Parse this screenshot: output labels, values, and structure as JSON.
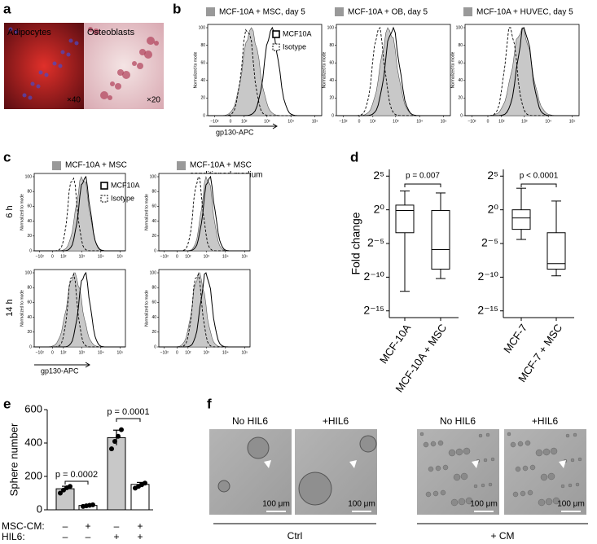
{
  "panels": {
    "a": {
      "letter": "a",
      "images": [
        {
          "label": "Adipocytes",
          "magnification": "×40"
        },
        {
          "label": "Osteoblasts",
          "magnification": "×20"
        }
      ]
    },
    "b": {
      "letter": "b",
      "plots": [
        {
          "title": "MCF-10A + MSC, day 5"
        },
        {
          "title": "MCF-10A + OB, day 5"
        },
        {
          "title": "MCF-10A + HUVEC, day 5"
        }
      ],
      "legend": [
        "MCF10A",
        "Isotype"
      ],
      "x_label": "gp130-APC",
      "y_label": "Normalized to mode"
    },
    "c": {
      "letter": "c",
      "columns": [
        {
          "title_lines": [
            "MCF-10A + MSC"
          ]
        },
        {
          "title_lines": [
            "MCF-10A + MSC",
            "conditioned medium"
          ]
        }
      ],
      "rows": [
        "6 h",
        "14 h"
      ],
      "legend": [
        "MCF10A",
        "Isotype"
      ],
      "x_label": "gp130-APC",
      "y_label": "Normalized to mode"
    },
    "flow_axes": {
      "xticks": [
        "−10²",
        "0",
        "10²",
        "10³",
        "10⁴",
        "10⁵"
      ],
      "yticks": [
        0,
        20,
        40,
        60,
        80,
        100
      ]
    },
    "d": {
      "letter": "d"
    },
    "e": {
      "letter": "e"
    },
    "f": {
      "letter": "f",
      "columns": [
        "No HIL6",
        "+HIL6",
        "No HIL6",
        "+HIL6"
      ],
      "groups": [
        "Ctrl",
        "+ CM"
      ],
      "scale_bar": "100 μm"
    }
  },
  "chart_data": [
    {
      "type": "box",
      "y_label": "Fold change",
      "log_base": 2,
      "ylim": [
        1.52587890625e-05,
        64
      ],
      "yticks": [
        {
          "value": 32,
          "label": "2⁵"
        },
        {
          "value": 1,
          "label": "2⁰"
        },
        {
          "value": 0.03125,
          "label": "2⁻⁵"
        },
        {
          "value": 0.0009765625,
          "label": "2⁻¹⁰"
        },
        {
          "value": 3.0517578125e-05,
          "label": "2⁻¹⁵"
        }
      ],
      "categories": [
        "MCF-10A",
        "MCF-10A + MSC"
      ],
      "boxes": [
        {
          "min": 0.000228,
          "q1": 0.0947,
          "median": 0.933,
          "q3": 1.62,
          "max": 6.96
        },
        {
          "min": 0.00085,
          "q1": 0.00224,
          "median": 0.0167,
          "q3": 0.933,
          "max": 5.66
        }
      ],
      "annotation": "p = 0.007"
    },
    {
      "type": "box",
      "log_base": 2,
      "ylim": [
        1.52587890625e-05,
        64
      ],
      "yticks": [
        {
          "value": 32,
          "label": "2⁵"
        },
        {
          "value": 1,
          "label": "2⁰"
        },
        {
          "value": 0.03125,
          "label": "2⁻⁵"
        },
        {
          "value": 0.0009765625,
          "label": "2⁻¹⁰"
        },
        {
          "value": 3.0517578125e-05,
          "label": "2⁻¹⁵"
        }
      ],
      "categories": [
        "MCF-7",
        "MCF-7 + MSC"
      ],
      "boxes": [
        {
          "min": 0.0474,
          "q1": 0.134,
          "median": 0.435,
          "q3": 1,
          "max": 9.19
        },
        {
          "min": 0.00112,
          "q1": 0.00224,
          "median": 0.00391,
          "q3": 0.0947,
          "max": 2.46
        }
      ],
      "annotation": "p < 0.0001"
    },
    {
      "type": "bar",
      "y_label": "Sphere number",
      "ylim": [
        0,
        600
      ],
      "yticks": [
        0,
        200,
        400,
        600
      ],
      "values": [
        126,
        26,
        432,
        152
      ],
      "errors": [
        15,
        5,
        45,
        12
      ],
      "points": [
        [
          100,
          118,
          132,
          140
        ],
        [
          20,
          24,
          27,
          30
        ],
        [
          365,
          410,
          440,
          480
        ],
        [
          130,
          140,
          150,
          160
        ]
      ],
      "colors": [
        "#c8c8c8",
        "#ffffff",
        "#c8c8c8",
        "#ffffff"
      ],
      "conditions": [
        {
          "label": "MSC-CM:",
          "values": [
            "–",
            "+",
            "–",
            "+"
          ]
        },
        {
          "label": "HIL6:",
          "values": [
            "–",
            "–",
            "+",
            "+"
          ]
        }
      ],
      "annotations": [
        "p = 0.0002",
        "p = 0.0001"
      ]
    }
  ]
}
